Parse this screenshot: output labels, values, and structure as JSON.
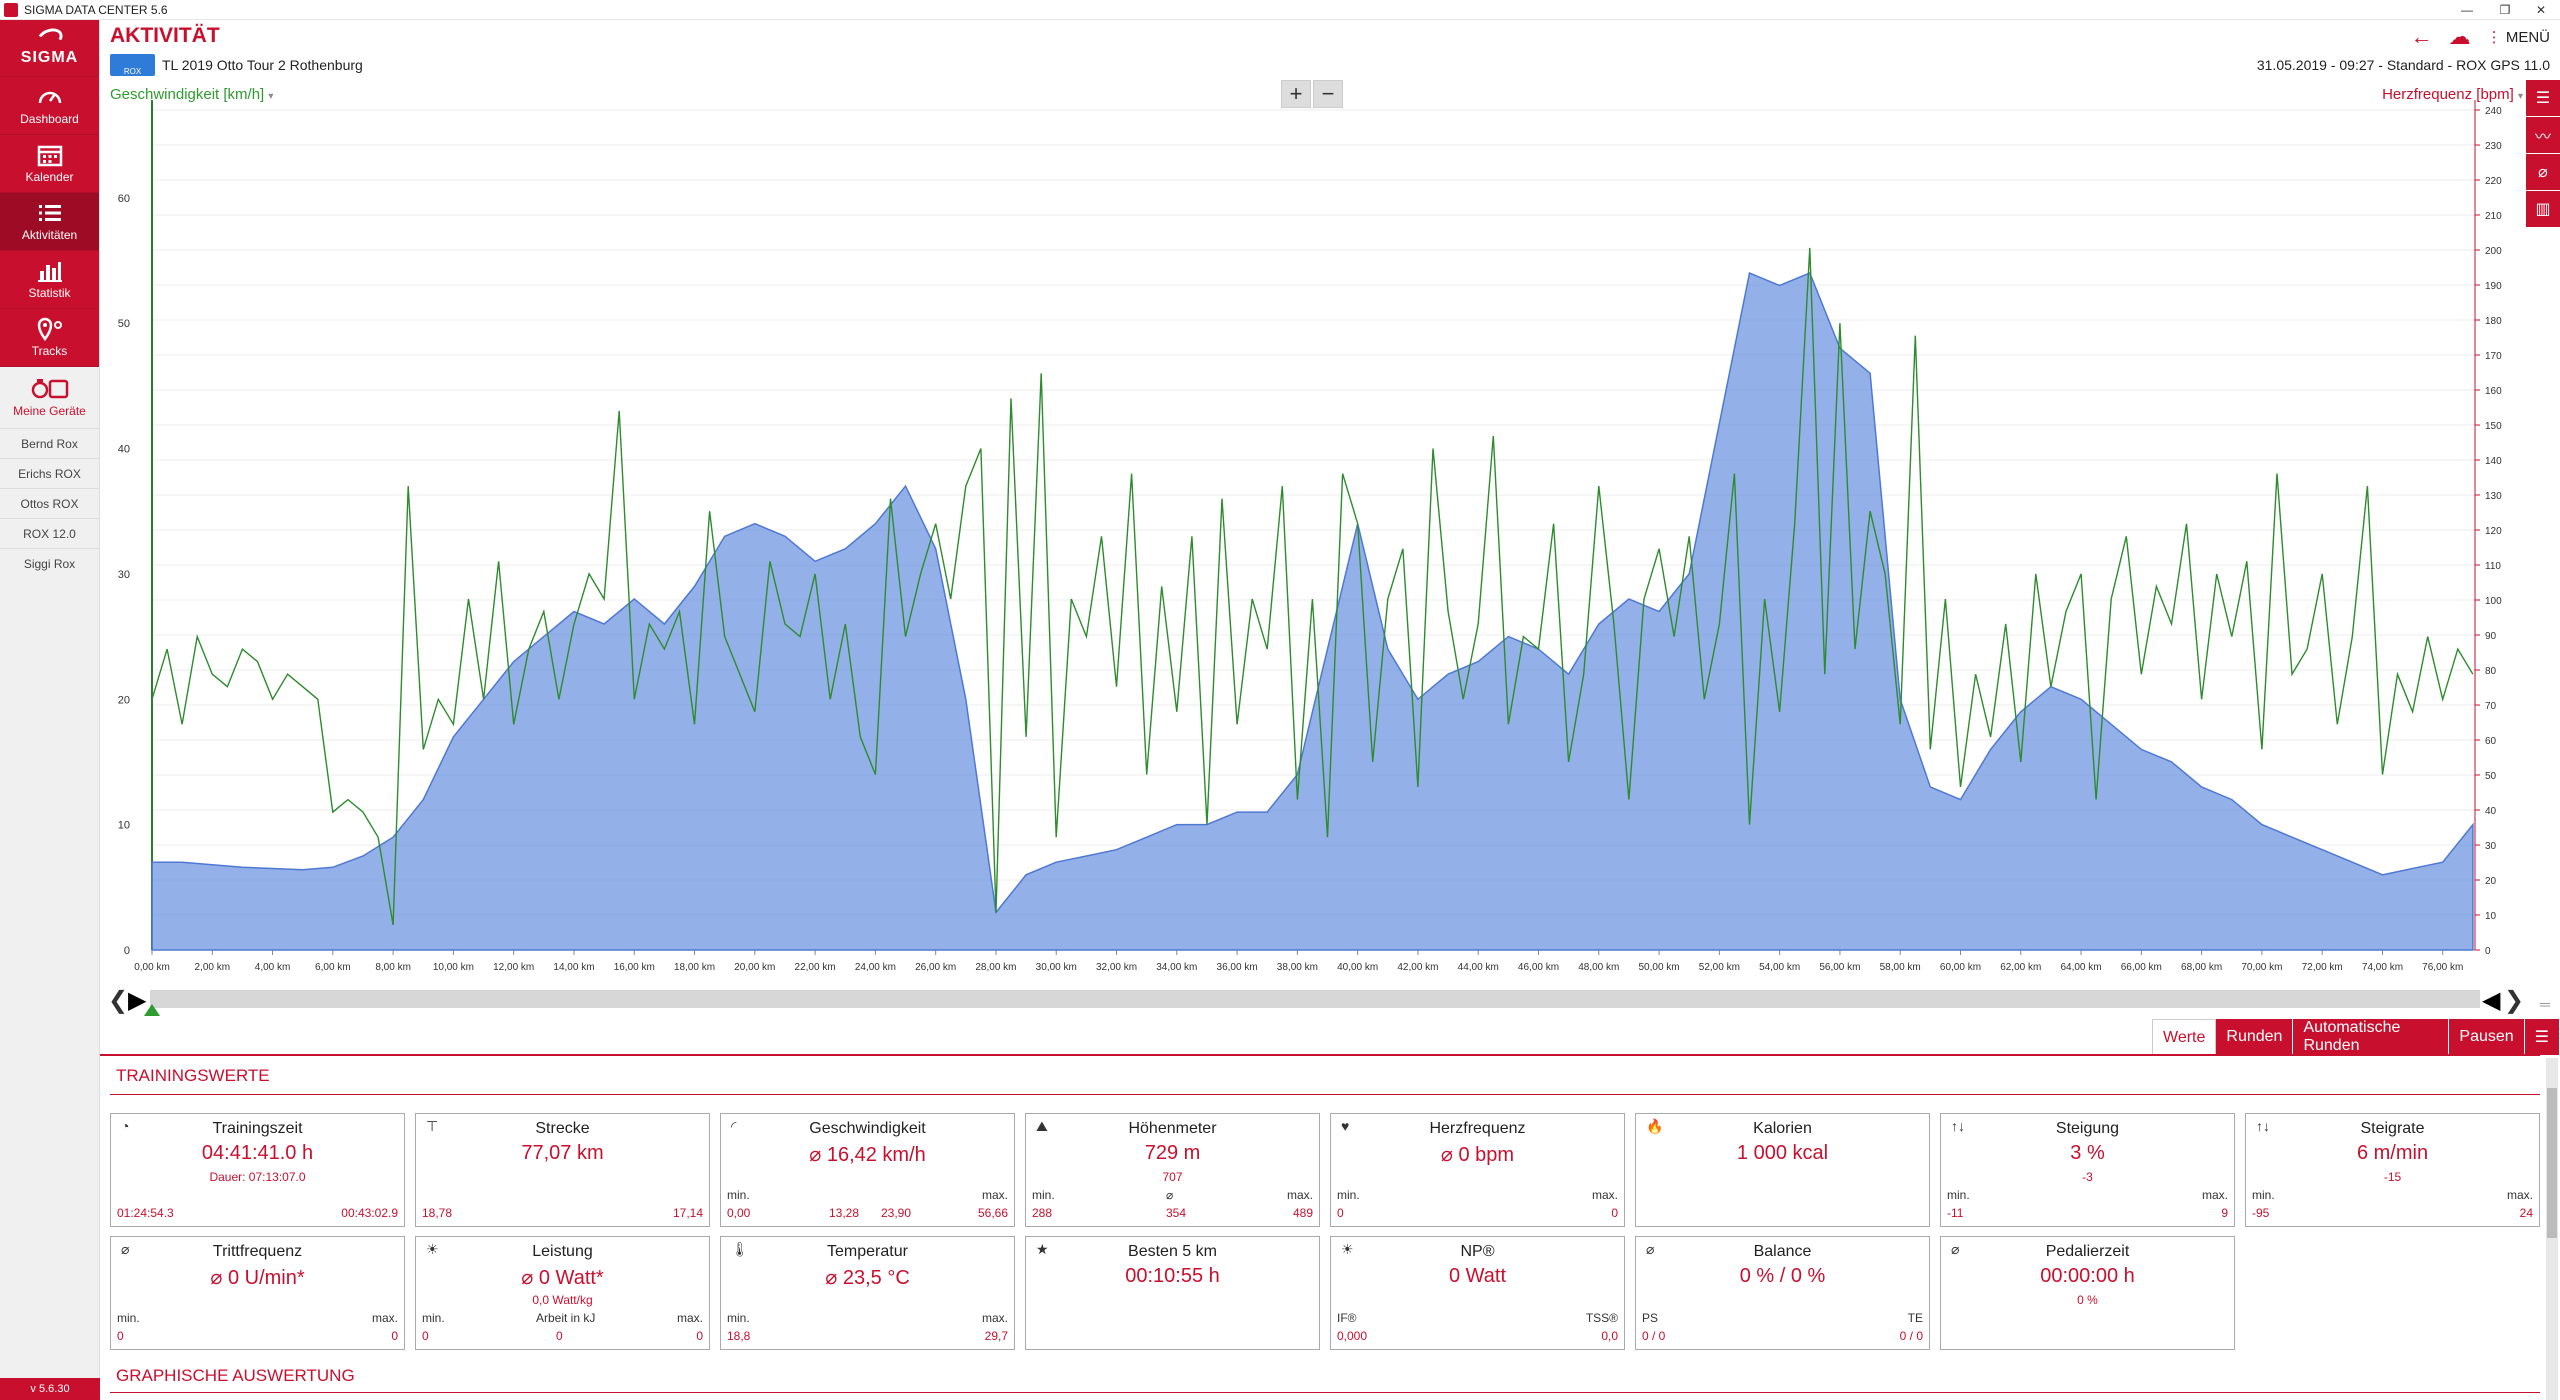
{
  "window": {
    "title": "SIGMA DATA CENTER 5.6"
  },
  "sidebar": {
    "logo": "SIGMA",
    "nav": [
      {
        "label": "Dashboard"
      },
      {
        "label": "Kalender"
      },
      {
        "label": "Aktivitäten"
      },
      {
        "label": "Statistik"
      },
      {
        "label": "Tracks"
      },
      {
        "label": "Meine Geräte"
      }
    ],
    "devices": [
      "Bernd Rox",
      "Erichs ROX",
      "Ottos ROX",
      "ROX 12.0",
      "Siggi Rox"
    ],
    "version": "v 5.6.30"
  },
  "header": {
    "title": "AKTIVITÄT",
    "activity_name": "TL 2019 Otto Tour 2 Rothenburg",
    "meta": "31.05.2019  -  09:27  -  Standard  -  ROX GPS 11.0",
    "menu_label": "MENÜ",
    "icon_label": "ROX"
  },
  "chart": {
    "ylabel_left": "Geschwindigkeit [km/h]",
    "ylabel_right": "Herzfrequenz [bpm]",
    "zoom_in": "+",
    "zoom_out": "−"
  },
  "chart_data": {
    "type": "area",
    "x_unit": "km",
    "xlim": [
      0,
      77.07
    ],
    "x_ticks": [
      "0,00 km",
      "2,00 km",
      "4,00 km",
      "6,00 km",
      "8,00 km",
      "10,00 km",
      "12,00 km",
      "14,00 km",
      "16,00 km",
      "18,00 km",
      "20,00 km",
      "22,00 km",
      "24,00 km",
      "26,00 km",
      "28,00 km",
      "30,00 km",
      "32,00 km",
      "34,00 km",
      "36,00 km",
      "38,00 km",
      "40,00 km",
      "42,00 km",
      "44,00 km",
      "46,00 km",
      "48,00 km",
      "50,00 km",
      "52,00 km",
      "54,00 km",
      "56,00 km",
      "58,00 km",
      "60,00 km",
      "62,00 km",
      "64,00 km",
      "66,00 km",
      "68,00 km",
      "70,00 km",
      "72,00 km",
      "74,00 km",
      "76,00 km"
    ],
    "y_left": {
      "label": "Geschwindigkeit [km/h]",
      "ylim": [
        0,
        67
      ],
      "ticks": [
        "0",
        "10",
        "20",
        "30",
        "40",
        "50",
        "60"
      ]
    },
    "y_right": {
      "label": "Herzfrequenz [bpm]",
      "ylim": [
        0,
        240
      ],
      "ticks": [
        "0",
        "10",
        "20",
        "30",
        "40",
        "50",
        "60",
        "70",
        "80",
        "90",
        "100",
        "110",
        "120",
        "130",
        "140",
        "150",
        "160",
        "170",
        "180",
        "190",
        "200",
        "210",
        "220",
        "230",
        "240"
      ]
    },
    "series": [
      {
        "color": "#6f95e0",
        "kind": "area",
        "x": [
          0,
          1,
          2,
          3,
          4,
          5,
          6,
          7,
          8,
          9,
          10,
          11,
          12,
          13,
          14,
          15,
          16,
          17,
          18,
          19,
          20,
          21,
          22,
          23,
          24,
          25,
          26,
          27,
          28,
          29,
          30,
          31,
          32,
          33,
          34,
          35,
          36,
          37,
          38,
          39,
          40,
          41,
          42,
          43,
          44,
          45,
          46,
          47,
          48,
          49,
          50,
          51,
          52,
          53,
          54,
          55,
          56,
          57,
          58,
          59,
          60,
          61,
          62,
          63,
          64,
          65,
          66,
          67,
          68,
          69,
          70,
          71,
          72,
          73,
          74,
          75,
          76,
          77
        ],
        "y": [
          7,
          7,
          6.8,
          6.6,
          6.5,
          6.4,
          6.6,
          7.5,
          9,
          12,
          17,
          20,
          23,
          25,
          27,
          26,
          28,
          26,
          29,
          33,
          34,
          33,
          31,
          32,
          34,
          37,
          32,
          20,
          3,
          6,
          7,
          7.5,
          8,
          9,
          10,
          10,
          11,
          11,
          14,
          24,
          34,
          24,
          20,
          22,
          23,
          25,
          24,
          22,
          26,
          28,
          27,
          30,
          42,
          54,
          53,
          54,
          48,
          46,
          20,
          13,
          12,
          16,
          19,
          21,
          20,
          18,
          16,
          15,
          13,
          12,
          10,
          9,
          8,
          7,
          6,
          6.5,
          7,
          10
        ]
      },
      {
        "color": "#2e8b2e",
        "kind": "line",
        "x": [
          0,
          0.5,
          1,
          1.5,
          2,
          2.5,
          3,
          3.5,
          4,
          4.5,
          5,
          5.5,
          6,
          6.5,
          7,
          7.5,
          8,
          8.5,
          9,
          9.5,
          10,
          10.5,
          11,
          11.5,
          12,
          12.5,
          13,
          13.5,
          14,
          14.5,
          15,
          15.5,
          16,
          16.5,
          17,
          17.5,
          18,
          18.5,
          19,
          19.5,
          20,
          20.5,
          21,
          21.5,
          22,
          22.5,
          23,
          23.5,
          24,
          24.5,
          25,
          25.5,
          26,
          26.5,
          27,
          27.5,
          28,
          28.5,
          29,
          29.5,
          30,
          30.5,
          31,
          31.5,
          32,
          32.5,
          33,
          33.5,
          34,
          34.5,
          35,
          35.5,
          36,
          36.5,
          37,
          37.5,
          38,
          38.5,
          39,
          39.5,
          40,
          40.5,
          41,
          41.5,
          42,
          42.5,
          43,
          43.5,
          44,
          44.5,
          45,
          45.5,
          46,
          46.5,
          47,
          47.5,
          48,
          48.5,
          49,
          49.5,
          50,
          50.5,
          51,
          51.5,
          52,
          52.5,
          53,
          53.5,
          54,
          54.5,
          55,
          55.5,
          56,
          56.5,
          57,
          57.5,
          58,
          58.5,
          59,
          59.5,
          60,
          60.5,
          61,
          61.5,
          62,
          62.5,
          63,
          63.5,
          64,
          64.5,
          65,
          65.5,
          66,
          66.5,
          67,
          67.5,
          68,
          68.5,
          69,
          69.5,
          70,
          70.5,
          71,
          71.5,
          72,
          72.5,
          73,
          73.5,
          74,
          74.5,
          75,
          75.5,
          76,
          76.5,
          77
        ],
        "y": [
          20,
          24,
          18,
          25,
          22,
          21,
          24,
          23,
          20,
          22,
          21,
          20,
          11,
          12,
          11,
          9,
          2,
          37,
          16,
          20,
          18,
          28,
          20,
          31,
          18,
          24,
          27,
          20,
          26,
          30,
          28,
          43,
          20,
          26,
          24,
          27,
          18,
          35,
          25,
          22,
          19,
          31,
          26,
          25,
          30,
          20,
          26,
          17,
          14,
          36,
          25,
          30,
          34,
          28,
          37,
          40,
          3,
          44,
          17,
          46,
          9,
          28,
          25,
          33,
          21,
          38,
          14,
          29,
          19,
          33,
          10,
          36,
          18,
          28,
          24,
          37,
          12,
          28,
          9,
          38,
          34,
          15,
          28,
          32,
          13,
          40,
          27,
          20,
          26,
          41,
          18,
          25,
          24,
          34,
          15,
          22,
          37,
          26,
          12,
          28,
          32,
          25,
          33,
          20,
          26,
          38,
          10,
          28,
          19,
          34,
          56,
          22,
          50,
          24,
          35,
          30,
          18,
          49,
          16,
          28,
          13,
          22,
          17,
          26,
          15,
          30,
          21,
          27,
          30,
          12,
          28,
          33,
          22,
          29,
          26,
          34,
          20,
          30,
          25,
          31,
          16,
          38,
          22,
          24,
          30,
          18,
          25,
          37,
          14,
          22,
          19,
          25,
          20,
          24,
          22
        ]
      }
    ]
  },
  "tabs": [
    {
      "label": "Werte"
    },
    {
      "label": "Runden"
    },
    {
      "label": "Automatische Runden"
    },
    {
      "label": "Pausen"
    }
  ],
  "sections": {
    "training": "TRAININGSWERTE",
    "graphic": "GRAPHISCHE AUSWERTUNG"
  },
  "cards": [
    {
      "title": "Trainingszeit",
      "value": "04:41:41.0 h",
      "sub": "Dauer:  07:13:07.0",
      "bl_left": "01:24:54.3",
      "bl_right": "00:43:02.9"
    },
    {
      "title": "Strecke",
      "value": "77,07 km",
      "bl_left": "18,78",
      "bl_right": "17,14"
    },
    {
      "title": "Geschwindigkeit",
      "value": "⌀ 16,42 km/h",
      "min_label": "min.",
      "max_label": "max.",
      "bl_left": "0,00",
      "bl_mid1": "13,28",
      "bl_mid2": "23,90",
      "bl_right": "56,66"
    },
    {
      "title": "Höhenmeter",
      "value": "729 m",
      "sub": "707",
      "min_label": "min.",
      "avg_label": "⌀",
      "max_label": "max.",
      "bl_left": "288",
      "bl_mid": "354",
      "bl_right": "489"
    },
    {
      "title": "Herzfrequenz",
      "value": "⌀ 0 bpm",
      "min_label": "min.",
      "max_label": "max.",
      "bl_left": "0",
      "bl_right": "0"
    },
    {
      "title": "Kalorien",
      "value": "1 000 kcal"
    },
    {
      "title": "Steigung",
      "value": "3 %",
      "sub": "-3",
      "min_label": "min.",
      "max_label": "max.",
      "bl_left": "-11",
      "bl_right": "9"
    },
    {
      "title": "Steigrate",
      "value": "6 m/min",
      "sub": "-15",
      "min_label": "min.",
      "max_label": "max.",
      "bl_left": "-95",
      "bl_right": "24"
    },
    {
      "title": "Trittfrequenz",
      "value": "⌀ 0 U/min*",
      "min_label": "min.",
      "max_label": "max.",
      "bl_left": "0",
      "bl_right": "0"
    },
    {
      "title": "Leistung",
      "value": "⌀ 0 Watt*",
      "sub": "0,0 Watt/kg",
      "min_label": "min.",
      "mid_label": "Arbeit in kJ",
      "max_label": "max.",
      "bl_left": "0",
      "bl_mid": "0",
      "bl_right": "0"
    },
    {
      "title": "Temperatur",
      "value": "⌀ 23,5 °C",
      "min_label": "min.",
      "max_label": "max.",
      "bl_left": "18,8",
      "bl_right": "29,7"
    },
    {
      "title": "Besten 5 km",
      "value": "00:10:55 h"
    },
    {
      "title": "NP®",
      "value": "0 Watt",
      "min_label": "IF®",
      "max_label": "TSS®",
      "bl_left": "0,000",
      "bl_right": "0,0"
    },
    {
      "title": "Balance",
      "value": "0 %  /  0 %",
      "min_label": "PS",
      "max_label": "TE",
      "bl_left": "0   /  0",
      "bl_right": "0   /  0"
    },
    {
      "title": "Pedalierzeit",
      "value": "00:00:00 h",
      "sub": "0 %"
    }
  ]
}
